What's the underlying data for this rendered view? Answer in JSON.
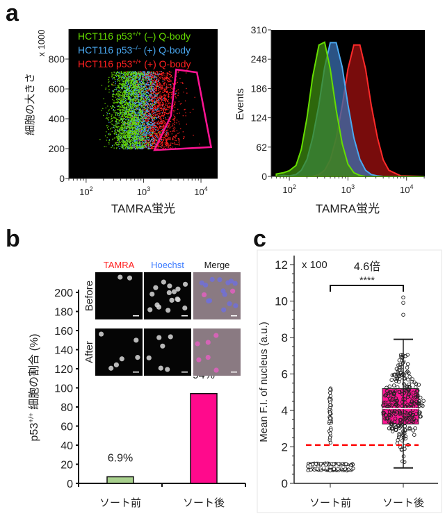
{
  "panels": {
    "a": "a",
    "b": "b",
    "c": "c"
  },
  "chart_data": [
    {
      "type": "scatter",
      "panel": "a",
      "xlabel": "TAMRA蛍光",
      "ylabel": "細胞の大きさ",
      "y_multiplier": "x 1000",
      "xscale": "log",
      "xlim": [
        50,
        19500
      ],
      "ylim": [
        0,
        1000
      ],
      "xticks": [
        {
          "value": 100,
          "base": "10",
          "exp": "2"
        },
        {
          "value": 1000,
          "base": "10",
          "exp": "3"
        },
        {
          "value": 10000,
          "base": "10",
          "exp": "4"
        }
      ],
      "yticks": [
        "0",
        "200",
        "400",
        "600",
        "800"
      ],
      "background": "#000000",
      "legend": [
        {
          "pre": "HCT116 p53",
          "sup": "+/+",
          "post": " (–) Q-body",
          "color": "#66dd00"
        },
        {
          "pre": "HCT116 p53",
          "sup": "–/–",
          "post": " (+) Q-body",
          "color": "#4aa8f0"
        },
        {
          "pre": "HCT116 p53",
          "sup": "+/+",
          "post": " (+) Q-body",
          "color": "#ff2020"
        }
      ],
      "series": [
        {
          "color": "#66dd00",
          "x_center": 560,
          "y_range": [
            200,
            720
          ]
        },
        {
          "color": "#4aa8f0",
          "x_center": 800,
          "y_range": [
            200,
            720
          ]
        },
        {
          "color": "#ff2020",
          "x_center": 1600,
          "y_range": [
            200,
            720
          ]
        }
      ],
      "gate": {
        "color": "#ff1493",
        "vertices": [
          [
            3700,
            730
          ],
          [
            8500,
            710
          ],
          [
            15000,
            210
          ],
          [
            1550,
            190
          ],
          [
            3000,
            420
          ]
        ]
      }
    },
    {
      "type": "area",
      "panel": "a",
      "xlabel": "TAMRA蛍光",
      "ylabel": "Events",
      "xscale": "log",
      "xlim": [
        49,
        20500
      ],
      "ylim": [
        0,
        310
      ],
      "xticks": [
        {
          "value": 100,
          "base": "10",
          "exp": "2"
        },
        {
          "value": 1000,
          "base": "10",
          "exp": "3"
        },
        {
          "value": 10000,
          "base": "10",
          "exp": "4"
        }
      ],
      "yticks": [
        "0",
        "62",
        "124",
        "186",
        "248",
        "310"
      ],
      "background": "#000000",
      "x": [
        60,
        80,
        100,
        130,
        160,
        200,
        250,
        320,
        400,
        500,
        630,
        800,
        1000,
        1260,
        1600,
        2000,
        2500,
        3200,
        4000,
        5000,
        8000,
        20000
      ],
      "series": [
        {
          "color": "#ff2a2a",
          "fill": "#a01010",
          "values": [
            0,
            0,
            0,
            0,
            0,
            0,
            0,
            4,
            13,
            35,
            81,
            150,
            227,
            278,
            278,
            227,
            150,
            81,
            35,
            13,
            1,
            0
          ]
        },
        {
          "color": "#4aa8f0",
          "fill": "#3a6fb0",
          "values": [
            0,
            2,
            1,
            4,
            13,
            36,
            82,
            152,
            231,
            283,
            283,
            231,
            152,
            82,
            36,
            13,
            4,
            1,
            0,
            0,
            0,
            0
          ]
        },
        {
          "color": "#66dd00",
          "fill": "#3c8a10",
          "values": [
            5,
            8,
            12,
            23,
            57,
            124,
            211,
            278,
            284,
            227,
            141,
            69,
            26,
            8,
            2,
            0,
            0,
            0,
            0,
            0,
            0,
            0
          ]
        }
      ]
    },
    {
      "type": "bar",
      "panel": "b",
      "ylabel_pre": "p53",
      "ylabel_sup": "+/+",
      "ylabel_post": " 細胞の割合 (%)",
      "ylim": [
        0,
        200
      ],
      "yticks": [
        "0",
        "20",
        "40",
        "60",
        "80",
        "100",
        "120",
        "140",
        "160",
        "180",
        "200"
      ],
      "categories": [
        "ソート前",
        "ソート後"
      ],
      "values": [
        6.9,
        94
      ],
      "data_labels": [
        "6.9%",
        "94%"
      ],
      "colors": [
        "#a8d08d",
        "#ff0a8c"
      ],
      "inset": {
        "columns": [
          {
            "label": "TAMRA",
            "color": "#ff2020"
          },
          {
            "label": "Hoechst",
            "color": "#3b7bff"
          },
          {
            "label": "Merge",
            "color": "#111111"
          }
        ],
        "rows": [
          "Before",
          "After"
        ]
      }
    },
    {
      "type": "box",
      "panel": "c",
      "ylabel": "Mean F.I. of nucleus (a.u.)",
      "y_multiplier": "x 100",
      "ylim": [
        0,
        12.4
      ],
      "yticks": [
        "0",
        "2",
        "4",
        "6",
        "8",
        "10",
        "12"
      ],
      "categories": [
        "ソート前",
        "ソート後"
      ],
      "annotation": {
        "fold": "4.6倍",
        "significance": "****"
      },
      "threshold": {
        "value": 2.1,
        "color": "#ff0000"
      },
      "boxes": [
        {
          "q1": 0.8,
          "median": 0.9,
          "q3": 1.0,
          "whisker_low": 0.7,
          "whisker_high": 1.15,
          "outlier_range": [
            2.2,
            5.35
          ],
          "fill": "none"
        },
        {
          "q1": 3.25,
          "median": 4.1,
          "q3": 5.2,
          "whisker_low": 0.85,
          "whisker_high": 7.9,
          "outliers": [
            9.25,
            9.9,
            10.2
          ],
          "fill": "#ff1493"
        }
      ]
    }
  ]
}
